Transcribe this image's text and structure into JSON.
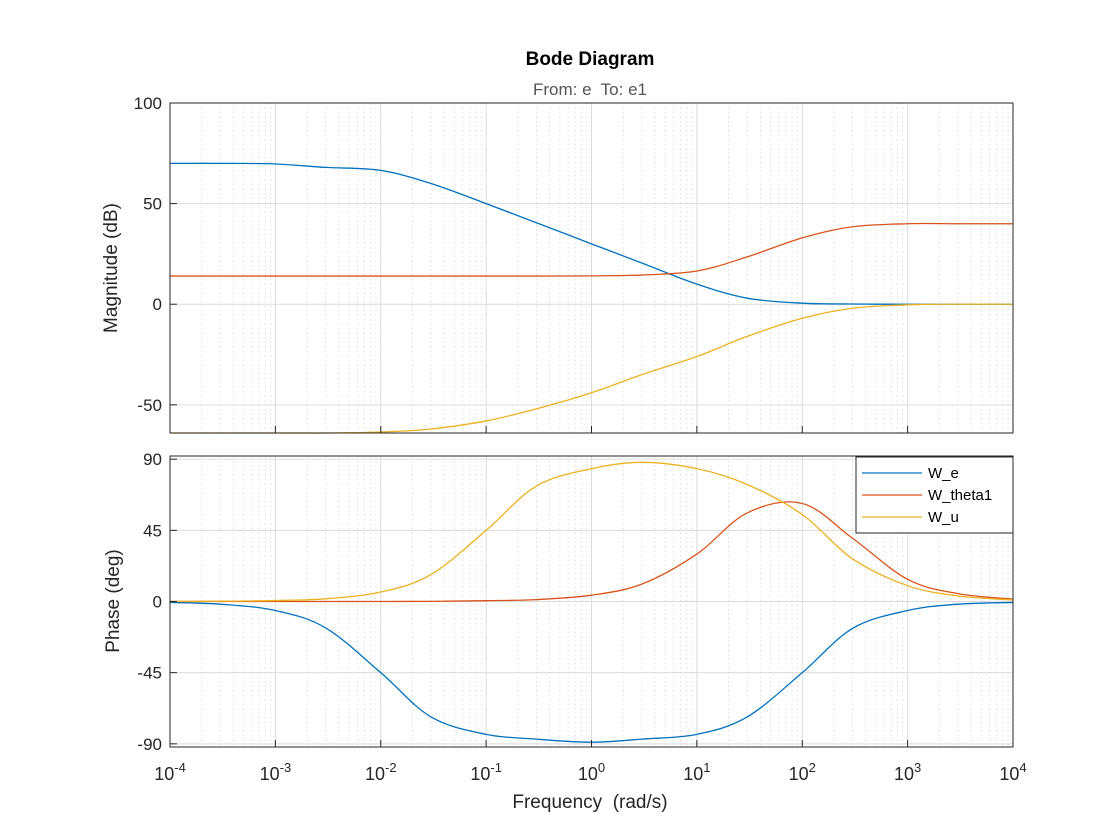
{
  "chart_data": {
    "type": "line",
    "title": "Bode Diagram",
    "subtitle": "From: e  To: e1",
    "xlabel": "Frequency  (rad/s)",
    "x_scale": "log",
    "xlim": [
      0.0001,
      10000
    ],
    "x_ticks": [
      {
        "base": "10",
        "exp": "-4"
      },
      {
        "base": "10",
        "exp": "-3"
      },
      {
        "base": "10",
        "exp": "-2"
      },
      {
        "base": "10",
        "exp": "-1"
      },
      {
        "base": "10",
        "exp": "0"
      },
      {
        "base": "10",
        "exp": "1"
      },
      {
        "base": "10",
        "exp": "2"
      },
      {
        "base": "10",
        "exp": "3"
      },
      {
        "base": "10",
        "exp": "4"
      }
    ],
    "grid": true,
    "legend_position": "top-right (phase panel)",
    "x": [
      0.0001,
      0.0003,
      0.001,
      0.003,
      0.01,
      0.03,
      0.1,
      0.3,
      1,
      3,
      10,
      30,
      100,
      300,
      1000,
      3000,
      10000
    ],
    "panels": [
      {
        "name": "magnitude",
        "ylabel": "Magnitude (dB)",
        "ylim": [
          -64,
          100
        ],
        "yticks": [
          "100",
          "50",
          "0",
          "-50"
        ],
        "ytick_values": [
          100,
          50,
          0,
          -50
        ]
      },
      {
        "name": "phase",
        "ylabel": "Phase (deg)",
        "ylim": [
          -92,
          92
        ],
        "yticks": [
          "90",
          "45",
          "0",
          "-45",
          "-90"
        ],
        "ytick_values": [
          90,
          45,
          0,
          -45,
          -90
        ]
      }
    ],
    "series": [
      {
        "name": "W_e",
        "color": "#0072BD",
        "magnitude": [
          70,
          70,
          69.7,
          68,
          66.5,
          60,
          50,
          40.5,
          30,
          20.5,
          10,
          3,
          0.5,
          0.1,
          0,
          0,
          0
        ],
        "phase": [
          -0.6,
          -1.7,
          -5.7,
          -16.7,
          -45,
          -73,
          -84,
          -87,
          -89,
          -87,
          -84,
          -73,
          -45,
          -17,
          -5.7,
          -1.7,
          -0.6
        ]
      },
      {
        "name": "W_theta1",
        "color": "#D95319",
        "magnitude": [
          14,
          14,
          14,
          14,
          14,
          14,
          14,
          14,
          14.1,
          14.5,
          16.5,
          23.5,
          33,
          38.5,
          40,
          40,
          40
        ],
        "phase": [
          0,
          0,
          0,
          0,
          0,
          0.1,
          0.5,
          1.2,
          4,
          11,
          30,
          56,
          62,
          40,
          14,
          5,
          1.5
        ]
      },
      {
        "name": "W_u",
        "color": "#EDB120",
        "magnitude": [
          -64,
          -64,
          -64,
          -64,
          -63.5,
          -62,
          -58,
          -52,
          -44,
          -35,
          -26,
          -16,
          -7,
          -2,
          -0.3,
          0,
          0
        ],
        "phase": [
          0.1,
          0.2,
          0.6,
          1.7,
          6,
          17,
          45,
          73,
          84,
          88,
          84,
          74,
          55,
          27,
          10,
          3.5,
          1
        ]
      }
    ]
  }
}
